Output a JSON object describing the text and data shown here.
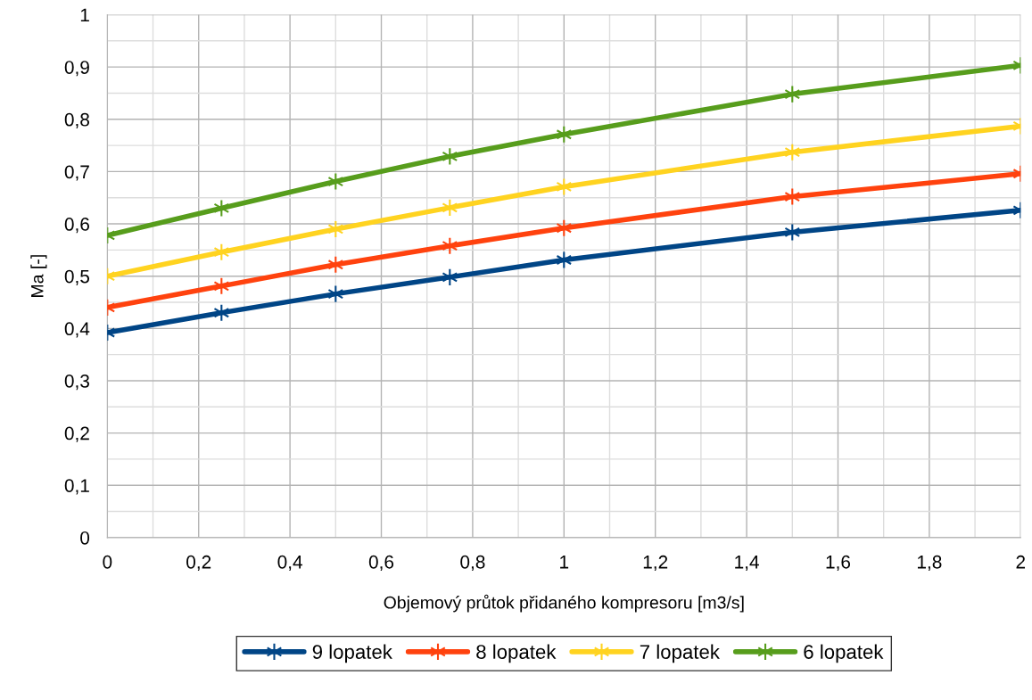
{
  "chart_data": {
    "type": "line",
    "xlabel": "Objemový průtok přidaného kompresoru [m3/s]",
    "ylabel": "Ma [-]",
    "x": [
      0,
      0.25,
      0.5,
      0.75,
      1,
      1.5,
      2
    ],
    "series": [
      {
        "name": "9 lopatek",
        "color": "#004586",
        "values": [
          0.392,
          0.43,
          0.466,
          0.498,
          0.531,
          0.584,
          0.626
        ]
      },
      {
        "name": "8 lopatek",
        "color": "#ff420e",
        "values": [
          0.44,
          0.481,
          0.522,
          0.558,
          0.592,
          0.652,
          0.696
        ]
      },
      {
        "name": "7 lopatek",
        "color": "#ffd320",
        "values": [
          0.5,
          0.546,
          0.59,
          0.631,
          0.671,
          0.737,
          0.787
        ]
      },
      {
        "name": "6 lopatek",
        "color": "#579d1c",
        "values": [
          0.578,
          0.63,
          0.681,
          0.729,
          0.771,
          0.848,
          0.903
        ]
      }
    ],
    "xlim": [
      0,
      2
    ],
    "xticks": [
      {
        "value": 0,
        "label": "0"
      },
      {
        "value": 0.2,
        "label": "0,2"
      },
      {
        "value": 0.4,
        "label": "0,4"
      },
      {
        "value": 0.6,
        "label": "0,6"
      },
      {
        "value": 0.8,
        "label": "0,8"
      },
      {
        "value": 1,
        "label": "1"
      },
      {
        "value": 1.2,
        "label": "1,2"
      },
      {
        "value": 1.4,
        "label": "1,4"
      },
      {
        "value": 1.6,
        "label": "1,6"
      },
      {
        "value": 1.8,
        "label": "1,8"
      },
      {
        "value": 2,
        "label": "2"
      }
    ],
    "ylim": [
      0,
      1
    ],
    "yticks": [
      {
        "value": 0,
        "label": "0"
      },
      {
        "value": 0.1,
        "label": "0,1"
      },
      {
        "value": 0.2,
        "label": "0,2"
      },
      {
        "value": 0.3,
        "label": "0,3"
      },
      {
        "value": 0.4,
        "label": "0,4"
      },
      {
        "value": 0.5,
        "label": "0,5"
      },
      {
        "value": 0.6,
        "label": "0,6"
      },
      {
        "value": 0.7,
        "label": "0,7"
      },
      {
        "value": 0.8,
        "label": "0,8"
      },
      {
        "value": 0.9,
        "label": "0,9"
      },
      {
        "value": 1,
        "label": "1"
      }
    ],
    "grid": true,
    "legend": "bottom",
    "marker": "cross",
    "line_style": "solid"
  }
}
